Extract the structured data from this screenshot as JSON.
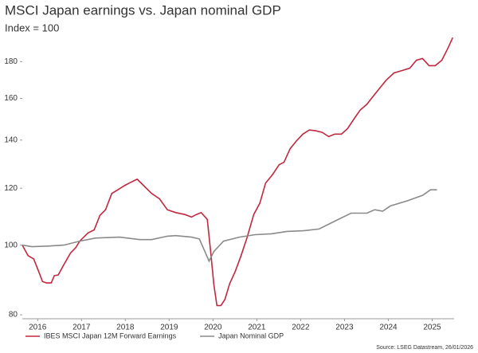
{
  "chart_data": {
    "type": "line",
    "title": "MSCI Japan earnings vs. Japan nominal GDP",
    "subtitle": "Index = 100",
    "source": "Source: LSEG Datastream, 26/01/2026",
    "log_scale": true,
    "xlim": [
      2016.15,
      2026.0
    ],
    "xticks": [
      {
        "value": 2016.5,
        "label": "2016"
      },
      {
        "value": 2017.5,
        "label": "2017"
      },
      {
        "value": 2018.5,
        "label": "2018"
      },
      {
        "value": 2019.5,
        "label": "2019"
      },
      {
        "value": 2020.5,
        "label": "2020"
      },
      {
        "value": 2021.5,
        "label": "2021"
      },
      {
        "value": 2022.5,
        "label": "2022"
      },
      {
        "value": 2023.5,
        "label": "2023"
      },
      {
        "value": 2024.5,
        "label": "2024"
      },
      {
        "value": 2025.5,
        "label": "2025"
      }
    ],
    "ylim": [
      79,
      198
    ],
    "yticks": [
      80,
      100,
      120,
      140,
      160,
      180
    ],
    "series": [
      {
        "name": "IBES MSCI Japan 12M Forward Earnings",
        "color": "#c0283f",
        "x": [
          2016.15,
          2016.28,
          2016.41,
          2016.52,
          2016.61,
          2016.7,
          2016.81,
          2016.88,
          2016.97,
          2017.1,
          2017.25,
          2017.37,
          2017.46,
          2017.65,
          2017.79,
          2017.92,
          2018.05,
          2018.19,
          2018.34,
          2018.48,
          2018.59,
          2018.77,
          2018.92,
          2019.1,
          2019.28,
          2019.46,
          2019.65,
          2019.86,
          2020.01,
          2020.12,
          2020.23,
          2020.37,
          2020.45,
          2020.52,
          2020.59,
          2020.68,
          2020.77,
          2020.88,
          2021.01,
          2021.14,
          2021.28,
          2021.43,
          2021.57,
          2021.7,
          2021.86,
          2022.01,
          2022.12,
          2022.26,
          2022.41,
          2022.55,
          2022.7,
          2022.85,
          2022.99,
          2023.14,
          2023.28,
          2023.43,
          2023.57,
          2023.72,
          2023.86,
          2024.01,
          2024.15,
          2024.3,
          2024.45,
          2024.63,
          2024.81,
          2024.99,
          2025.14,
          2025.28,
          2025.43,
          2025.57,
          2025.72,
          2025.86,
          2025.97
        ],
        "values": [
          100,
          96.7,
          95.7,
          92,
          89,
          88.6,
          88.6,
          90.7,
          90.9,
          94,
          97.5,
          99.2,
          101.3,
          104,
          105,
          110,
          112,
          118,
          119.5,
          121,
          122,
          123.5,
          121,
          118,
          116,
          112,
          111,
          110.3,
          109.4,
          110.3,
          111,
          108.6,
          97.5,
          88,
          82.4,
          82.4,
          84,
          88.4,
          92,
          96.7,
          102.6,
          110.3,
          114.4,
          122,
          125.4,
          129.4,
          130.4,
          136.2,
          139.8,
          142.7,
          144.6,
          144.2,
          143.5,
          141.6,
          142.7,
          142.7,
          145.3,
          149.9,
          154.2,
          157,
          161,
          165.3,
          169.6,
          173.6,
          174.9,
          176.3,
          180.8,
          181.8,
          177.7,
          177.7,
          180.8,
          188,
          194.4
        ]
      },
      {
        "name": "Japan Nominal GDP",
        "color": "#8a8a8a",
        "x": [
          2016.15,
          2016.37,
          2016.74,
          2017.1,
          2017.46,
          2017.83,
          2018.37,
          2018.83,
          2019.1,
          2019.46,
          2019.65,
          2020.01,
          2020.19,
          2020.41,
          2020.52,
          2020.74,
          2021.1,
          2021.46,
          2021.83,
          2022.19,
          2022.55,
          2022.92,
          2023.28,
          2023.65,
          2024.01,
          2024.19,
          2024.37,
          2024.55,
          2024.92,
          2025.28,
          2025.46,
          2025.61
        ],
        "values": [
          100,
          99.5,
          99.7,
          100,
          101.3,
          102.3,
          102.6,
          101.8,
          101.8,
          102.9,
          103.1,
          102.6,
          102,
          95,
          98,
          101.3,
          102.6,
          103.4,
          103.7,
          104.5,
          104.7,
          105.3,
          108,
          110.8,
          110.8,
          112,
          111.5,
          113.4,
          115.2,
          117.3,
          119.4,
          119.4
        ]
      }
    ]
  }
}
